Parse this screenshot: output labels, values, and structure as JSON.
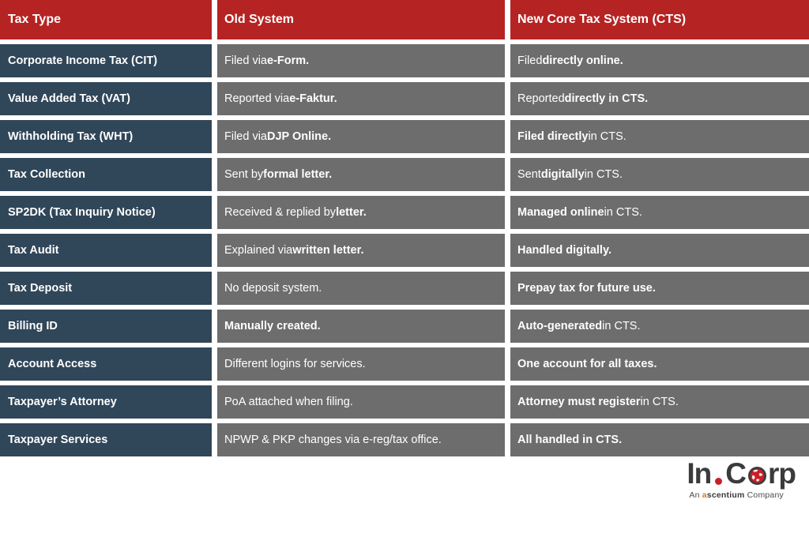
{
  "table": {
    "headers": [
      "Tax Type",
      "Old System",
      "New Core Tax System (CTS)"
    ],
    "rows": [
      {
        "tax_type": "Corporate Income Tax (CIT)",
        "old_system": [
          {
            "t": "Filed via ",
            "b": false
          },
          {
            "t": "e-Form.",
            "b": true
          }
        ],
        "new_system": [
          {
            "t": "Filed ",
            "b": false
          },
          {
            "t": "directly online.",
            "b": true
          }
        ]
      },
      {
        "tax_type": "Value Added Tax (VAT)",
        "old_system": [
          {
            "t": "Reported via ",
            "b": false
          },
          {
            "t": "e-Faktur.",
            "b": true
          }
        ],
        "new_system": [
          {
            "t": "Reported ",
            "b": false
          },
          {
            "t": "directly in CTS.",
            "b": true
          }
        ]
      },
      {
        "tax_type": "Withholding Tax (WHT)",
        "old_system": [
          {
            "t": "Filed via ",
            "b": false
          },
          {
            "t": "DJP Online.",
            "b": true
          }
        ],
        "new_system": [
          {
            "t": "Filed directly",
            "b": true
          },
          {
            "t": " in CTS.",
            "b": false
          }
        ]
      },
      {
        "tax_type": "Tax Collection",
        "old_system": [
          {
            "t": "Sent by ",
            "b": false
          },
          {
            "t": "formal letter.",
            "b": true
          }
        ],
        "new_system": [
          {
            "t": "Sent ",
            "b": false
          },
          {
            "t": "digitally",
            "b": true
          },
          {
            "t": " in CTS.",
            "b": false
          }
        ]
      },
      {
        "tax_type": "SP2DK (Tax Inquiry Notice)",
        "old_system": [
          {
            "t": "Received & replied by ",
            "b": false
          },
          {
            "t": "letter.",
            "b": true
          }
        ],
        "new_system": [
          {
            "t": "Managed online",
            "b": true
          },
          {
            "t": " in CTS.",
            "b": false
          }
        ]
      },
      {
        "tax_type": "Tax Audit",
        "old_system": [
          {
            "t": "Explained via ",
            "b": false
          },
          {
            "t": "written letter.",
            "b": true
          }
        ],
        "new_system": [
          {
            "t": "Handled digitally.",
            "b": true
          }
        ]
      },
      {
        "tax_type": "Tax Deposit",
        "old_system": [
          {
            "t": "No deposit system.",
            "b": false
          }
        ],
        "new_system": [
          {
            "t": "Prepay tax for future use.",
            "b": true
          }
        ]
      },
      {
        "tax_type": "Billing ID",
        "old_system": [
          {
            "t": "Manually created.",
            "b": true
          }
        ],
        "new_system": [
          {
            "t": "Auto-generated",
            "b": true
          },
          {
            "t": " in CTS.",
            "b": false
          }
        ]
      },
      {
        "tax_type": "Account Access",
        "old_system": [
          {
            "t": "Different logins for services.",
            "b": false
          }
        ],
        "new_system": [
          {
            "t": "One account for all taxes.",
            "b": true
          }
        ]
      },
      {
        "tax_type": "Taxpayer’s Attorney",
        "old_system": [
          {
            "t": "PoA attached when filing.",
            "b": false
          }
        ],
        "new_system": [
          {
            "t": "Attorney must register",
            "b": true
          },
          {
            "t": " in CTS.",
            "b": false
          }
        ]
      },
      {
        "tax_type": "Taxpayer Services",
        "old_system": [
          {
            "t": "NPWP & PKP changes via e-reg/tax office.",
            "b": false
          }
        ],
        "new_system": [
          {
            "t": "All handled in CTS.",
            "b": true
          }
        ]
      }
    ]
  },
  "colors": {
    "header_bg": "#b62323",
    "tax_type_bg": "#304659",
    "system_bg": "#6e6d6d",
    "cell_text": "#ffffff",
    "logo_dark": "#3b3b3d",
    "logo_red": "#c82028",
    "tagline_accent": "#e2761d"
  },
  "logo": {
    "part_in": "In",
    "part_c": "C",
    "part_rp": "rp",
    "tagline_an": "An",
    "tagline_brand_a": "a",
    "tagline_brand_rest": "scentium",
    "tagline_company": "Company"
  }
}
